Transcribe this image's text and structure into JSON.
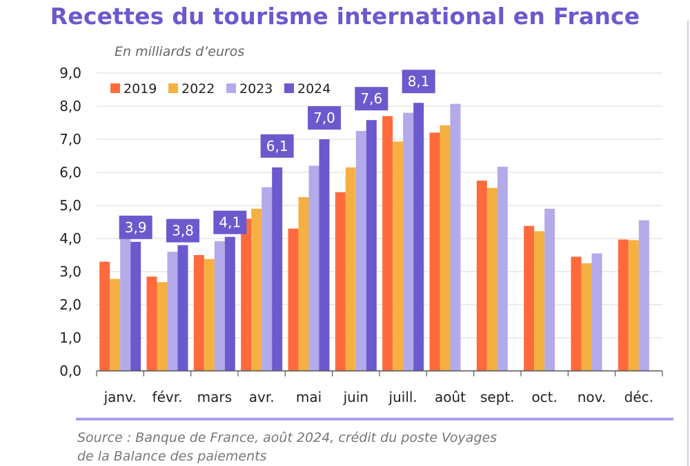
{
  "title": "Recettes du tourisme international en France",
  "subtitle": "En milliards d’euros",
  "source_line1": "Source : Banque de France, août 2024, crédit du poste Voyages",
  "source_line2": "de la Balance des paiements",
  "chart_data": {
    "type": "bar",
    "title": "Recettes du tourisme international en France",
    "ylabel": "En milliards d’euros",
    "ylim": [
      0,
      9
    ],
    "yticks": [
      "0,0",
      "1,0",
      "2,0",
      "3,0",
      "4,0",
      "5,0",
      "6,0",
      "7,0",
      "8,0",
      "9,0"
    ],
    "grid": true,
    "legend": "top-left",
    "categories": [
      "janv.",
      "févr.",
      "mars",
      "avr.",
      "mai",
      "juin",
      "juill.",
      "août",
      "sept.",
      "oct.",
      "nov.",
      "déc."
    ],
    "series": [
      {
        "name": "2019",
        "color": "#ff6a3d",
        "values": [
          3.3,
          2.85,
          3.5,
          4.6,
          4.3,
          5.4,
          7.7,
          7.2,
          5.75,
          4.38,
          3.45,
          3.97
        ]
      },
      {
        "name": "2022",
        "color": "#f5b041",
        "values": [
          2.78,
          2.68,
          3.38,
          4.9,
          5.25,
          6.15,
          6.93,
          7.42,
          5.53,
          4.22,
          3.25,
          3.95
        ]
      },
      {
        "name": "2023",
        "color": "#b3aaea",
        "values": [
          4.22,
          3.6,
          3.92,
          5.55,
          6.2,
          7.25,
          7.8,
          8.07,
          6.17,
          4.9,
          3.55,
          4.55
        ]
      },
      {
        "name": "2024",
        "color": "#6a5acd",
        "values": [
          3.9,
          3.8,
          4.05,
          6.15,
          7.0,
          7.58,
          8.1,
          null,
          null,
          null,
          null,
          null
        ]
      }
    ],
    "data_labels": [
      {
        "category": "janv.",
        "series": "2024",
        "text": "3,9"
      },
      {
        "category": "févr.",
        "series": "2024",
        "text": "3,8"
      },
      {
        "category": "mars",
        "series": "2024",
        "text": "4,1"
      },
      {
        "category": "avr.",
        "series": "2024",
        "text": "6,1"
      },
      {
        "category": "mai",
        "series": "2024",
        "text": "7,0"
      },
      {
        "category": "juin",
        "series": "2024",
        "text": "7,6"
      },
      {
        "category": "juill.",
        "series": "2024",
        "text": "8,1"
      }
    ]
  }
}
